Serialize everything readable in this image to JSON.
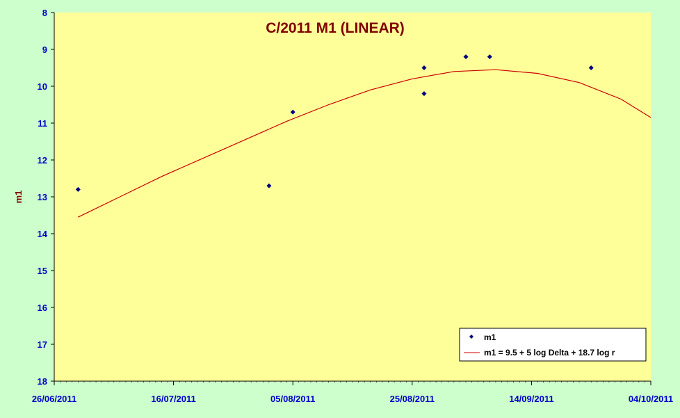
{
  "colors": {
    "page_background": "#ccffcc",
    "plot_background": "#ffff99",
    "axis": "#000000",
    "tick_labels": "#0000cc",
    "title": "#800000",
    "axis_label": "#800000",
    "points": "#000080",
    "fit_line": "#cc0000",
    "legend_background": "#ffffff"
  },
  "chart_data": {
    "type": "scatter",
    "title": "C/2011 M1 (LINEAR)",
    "xlabel": "",
    "ylabel": "m1",
    "x_tick_labels": [
      "26/06/2011",
      "16/07/2011",
      "05/08/2011",
      "25/08/2011",
      "14/09/2011",
      "04/10/2011"
    ],
    "x_range": [
      "2011-06-26",
      "2011-10-04"
    ],
    "y_range": [
      8,
      18
    ],
    "y_inverted": true,
    "y_ticks": [
      8,
      9,
      10,
      11,
      12,
      13,
      14,
      15,
      16,
      17,
      18
    ],
    "grid": false,
    "legend_position": "bottom-right",
    "series": [
      {
        "name": "m1",
        "type": "scatter",
        "marker": "diamond",
        "points": [
          {
            "x": "2011-06-30",
            "y": 12.8
          },
          {
            "x": "2011-08-01",
            "y": 12.7
          },
          {
            "x": "2011-08-05",
            "y": 10.7
          },
          {
            "x": "2011-08-27",
            "y": 9.5
          },
          {
            "x": "2011-08-27",
            "y": 10.2
          },
          {
            "x": "2011-09-03",
            "y": 9.2
          },
          {
            "x": "2011-09-07",
            "y": 9.2
          },
          {
            "x": "2011-09-24",
            "y": 9.5
          }
        ]
      },
      {
        "name": "m1 = 9.5 + 5 log Delta + 18.7 log r",
        "type": "line",
        "points": [
          {
            "x": "2011-06-30",
            "y": 13.55
          },
          {
            "x": "2011-07-07",
            "y": 13.0
          },
          {
            "x": "2011-07-14",
            "y": 12.45
          },
          {
            "x": "2011-07-21",
            "y": 11.95
          },
          {
            "x": "2011-07-28",
            "y": 11.45
          },
          {
            "x": "2011-08-04",
            "y": 10.95
          },
          {
            "x": "2011-08-11",
            "y": 10.5
          },
          {
            "x": "2011-08-18",
            "y": 10.1
          },
          {
            "x": "2011-08-25",
            "y": 9.8
          },
          {
            "x": "2011-09-01",
            "y": 9.6
          },
          {
            "x": "2011-09-08",
            "y": 9.55
          },
          {
            "x": "2011-09-15",
            "y": 9.65
          },
          {
            "x": "2011-09-22",
            "y": 9.9
          },
          {
            "x": "2011-09-29",
            "y": 10.35
          },
          {
            "x": "2011-10-04",
            "y": 10.85
          }
        ]
      }
    ]
  }
}
